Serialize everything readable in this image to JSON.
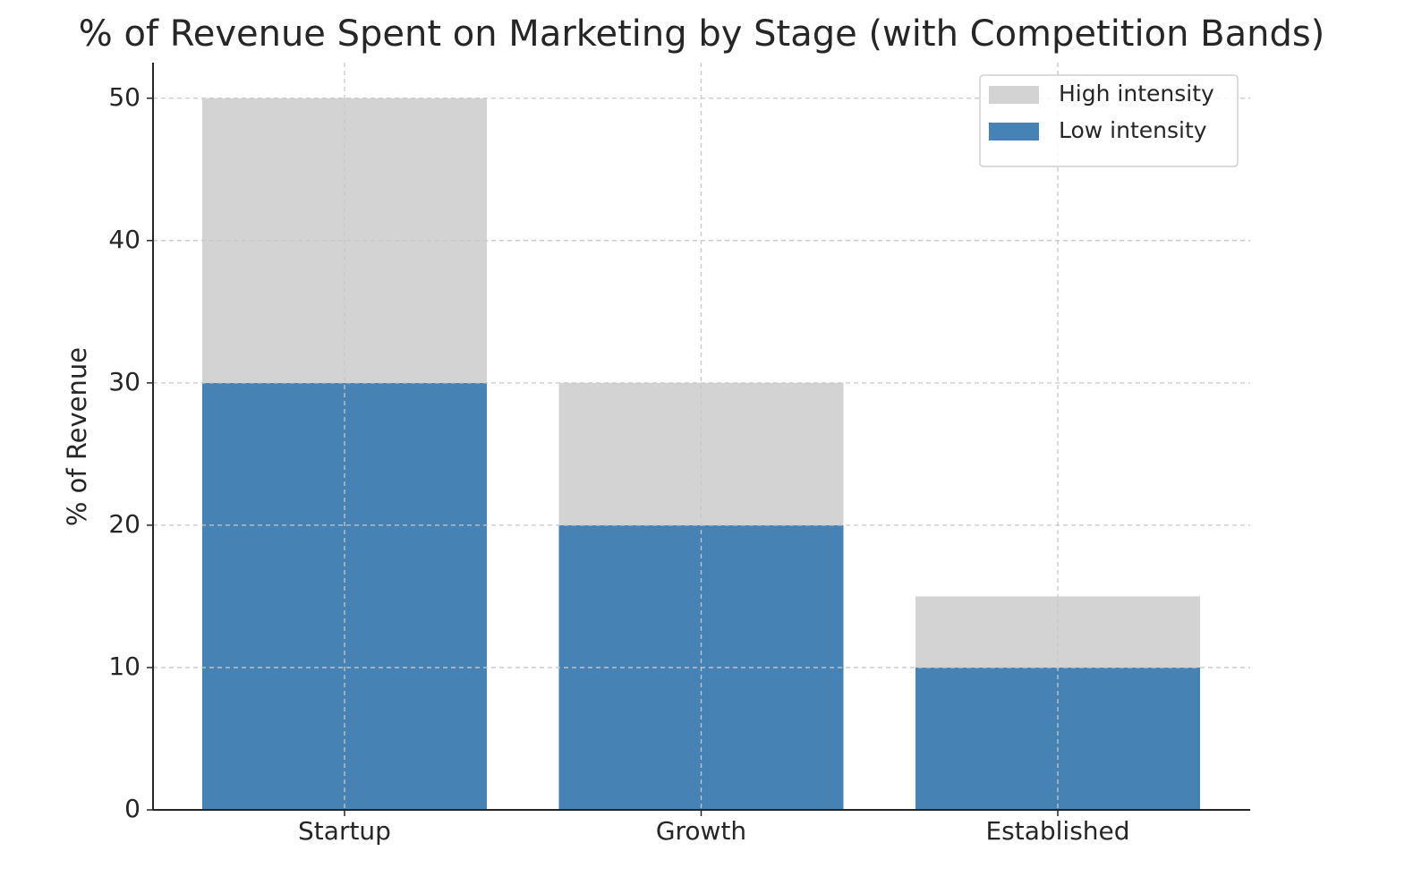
{
  "chart_data": {
    "type": "stacked_bar",
    "title": "% of Revenue Spent on Marketing by Stage (with Competition Bands)",
    "y_label": "% of Revenue",
    "categories": [
      "Startup",
      "Growth",
      "Established"
    ],
    "series": [
      {
        "name": "Low intensity",
        "color": "#4682b4",
        "values": [
          30,
          20,
          10
        ]
      },
      {
        "name": "High intensity",
        "color": "#d3d3d3",
        "values": [
          20,
          10,
          5
        ]
      }
    ],
    "ylim": [
      0,
      52.5
    ],
    "yticks": [
      0,
      10,
      20,
      30,
      40,
      50
    ],
    "grid": true,
    "legend": "upper right"
  }
}
